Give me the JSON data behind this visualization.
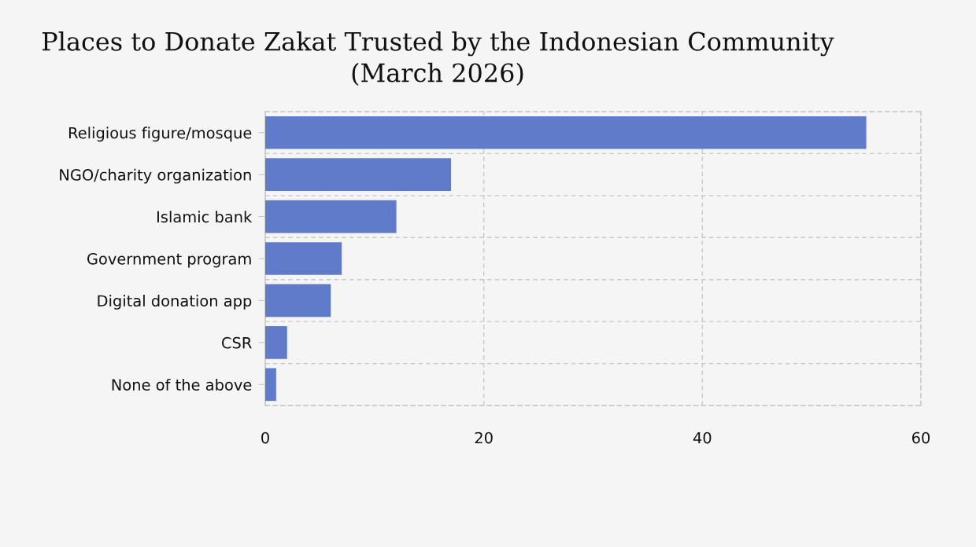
{
  "chart_data": {
    "type": "bar",
    "orientation": "horizontal",
    "title": "Places to Donate Zakat Trusted by the Indonesian Community\n(March 2026)",
    "categories": [
      "Religious figure/mosque",
      "NGO/charity organization",
      "Islamic bank",
      "Government program",
      "Digital donation app",
      "CSR",
      "None of the above"
    ],
    "values": [
      55,
      17,
      12,
      7,
      6,
      2,
      1
    ],
    "color": "#607bca",
    "xlim": [
      0,
      60
    ],
    "xticks": [
      0,
      20,
      40,
      60
    ],
    "grid": true
  }
}
